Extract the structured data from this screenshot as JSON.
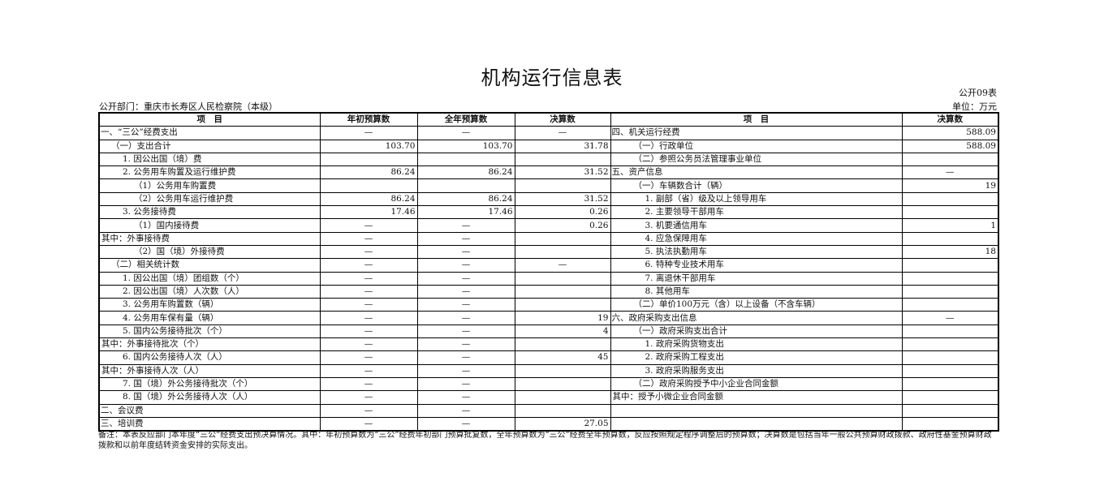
{
  "title": "机构运行信息表",
  "table_code": "公开09表",
  "unit": "单位：万元",
  "department": "公开部门：重庆市长寿区人民检察院（本级）",
  "headers": [
    "项　目",
    "年初预算数",
    "全年预算数",
    "决算数",
    "项　目",
    "决算数"
  ],
  "rows": [
    {
      "l": "一、“三公”经费支出",
      "a": "—",
      "b": "—",
      "c": "—",
      "r": "四、机关运行经费",
      "v": "588.09"
    },
    {
      "l": "（一）支出合计",
      "a": "103.70",
      "b": "103.70",
      "c": "31.78",
      "r": "（一）行政单位",
      "v": "588.09"
    },
    {
      "l": "1. 因公出国（境）费",
      "a": "",
      "b": "",
      "c": "",
      "r": "（二）参照公务员法管理事业单位",
      "v": ""
    },
    {
      "l": "2. 公务用车购置及运行维护费",
      "a": "86.24",
      "b": "86.24",
      "c": "31.52",
      "r": "五、资产信息",
      "v": "—"
    },
    {
      "l": "（1）公务用车购置费",
      "a": "",
      "b": "",
      "c": "",
      "r": "（一）车辆数合计（辆）",
      "v": "19"
    },
    {
      "l": "（2）公务用车运行维护费",
      "a": "86.24",
      "b": "86.24",
      "c": "31.52",
      "r": "1. 副部（省）级及以上领导用车",
      "v": ""
    },
    {
      "l": "3. 公务接待费",
      "a": "17.46",
      "b": "17.46",
      "c": "0.26",
      "r": "2. 主要领导干部用车",
      "v": ""
    },
    {
      "l": "（1）国内接待费",
      "a": "—",
      "b": "—",
      "c": "0.26",
      "r": "3. 机要通信用车",
      "v": "1"
    },
    {
      "l": "其中：外事接待费",
      "a": "—",
      "b": "—",
      "c": "",
      "r": "4. 应急保障用车",
      "v": ""
    },
    {
      "l": "（2）国（境）外接待费",
      "a": "—",
      "b": "—",
      "c": "",
      "r": "5. 执法执勤用车",
      "v": "18"
    },
    {
      "l": "（二）相关统计数",
      "a": "—",
      "b": "—",
      "c": "—",
      "r": "6. 特种专业技术用车",
      "v": ""
    },
    {
      "l": "1. 因公出国（境）团组数（个）",
      "a": "—",
      "b": "—",
      "c": "",
      "r": "7. 离退休干部用车",
      "v": ""
    },
    {
      "l": "2. 因公出国（境）人次数（人）",
      "a": "—",
      "b": "—",
      "c": "",
      "r": "8. 其他用车",
      "v": ""
    },
    {
      "l": "3. 公务用车购置数（辆）",
      "a": "—",
      "b": "—",
      "c": "",
      "r": "（二）单价100万元（含）以上设备（不含车辆）",
      "v": ""
    },
    {
      "l": "4. 公务用车保有量（辆）",
      "a": "—",
      "b": "—",
      "c": "19",
      "r": "六、政府采购支出信息",
      "v": "—"
    },
    {
      "l": "5. 国内公务接待批次（个）",
      "a": "—",
      "b": "—",
      "c": "4",
      "r": "（一）政府采购支出合计",
      "v": ""
    },
    {
      "l": "其中：外事接待批次（个）",
      "a": "—",
      "b": "—",
      "c": "",
      "r": "1. 政府采购货物支出",
      "v": ""
    },
    {
      "l": "6. 国内公务接待人次（人）",
      "a": "—",
      "b": "—",
      "c": "45",
      "r": "2. 政府采购工程支出",
      "v": ""
    },
    {
      "l": "其中：外事接待人次（人）",
      "a": "—",
      "b": "—",
      "c": "",
      "r": "3. 政府采购服务支出",
      "v": ""
    },
    {
      "l": "7. 国（境）外公务接待批次（个）",
      "a": "—",
      "b": "—",
      "c": "",
      "r": "（二）政府采购授予中小企业合同金额",
      "v": ""
    },
    {
      "l": "8. 国（境）外公务接待人次（人）",
      "a": "—",
      "b": "—",
      "c": "",
      "r": "其中：授予小微企业合同金额",
      "v": ""
    },
    {
      "l": "二、会议费",
      "a": "—",
      "b": "—",
      "c": "",
      "r": "",
      "v": ""
    },
    {
      "l": "三、培训费",
      "a": "—",
      "b": "—",
      "c": "27.05",
      "r": "",
      "v": ""
    }
  ],
  "note": "备注：本表反应部门本年度“三公”经费支出预决算情况。其中：年初预算数为“三公”经费年初部门预算批复数，全年预算数为“三公”经费全年预算数，反应按照规定程序调整后的预算数；决算数是包括当年一般公共预算财政拨款、政府性基金预算财政拨款和以前年度结转资金安排的实际支出。"
}
